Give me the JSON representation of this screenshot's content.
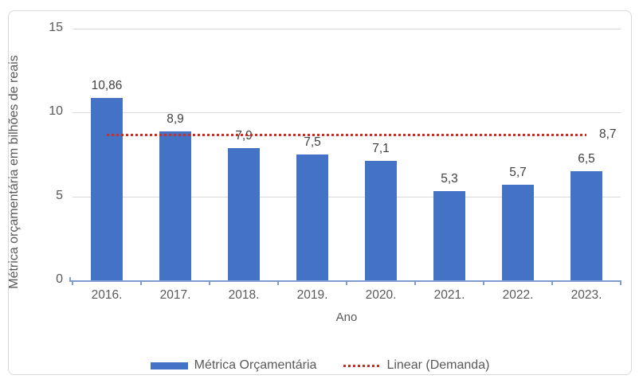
{
  "chart_data": {
    "type": "bar",
    "title": "",
    "xlabel": "Ano",
    "ylabel": "Métrica orçamentária em bilhões de reais",
    "ylim": [
      0,
      15
    ],
    "yticks": [
      0,
      5,
      10,
      15
    ],
    "ytick_labels": [
      "0",
      "5",
      "10",
      "15"
    ],
    "grid": true,
    "legend_position": "bottom",
    "categories": [
      "2016.",
      "2017.",
      "2018.",
      "2019.",
      "2020.",
      "2021.",
      "2022.",
      "2023."
    ],
    "series": [
      {
        "name": "Métrica Orçamentária",
        "type": "bar",
        "color": "#4472C4",
        "values": [
          10.86,
          8.9,
          7.9,
          7.5,
          7.1,
          5.3,
          5.7,
          6.5
        ],
        "value_labels": [
          "10,86",
          "8,9",
          "7,9",
          "7,5",
          "7,1",
          "5,3",
          "5,7",
          "6,5"
        ]
      },
      {
        "name": "Linear (Demanda)",
        "type": "trendline",
        "style": "dotted",
        "color": "#CC2E21",
        "value": 8.7,
        "value_label": "8,7"
      }
    ],
    "colors": {
      "bar": "#4472C4",
      "trendline": "#CC2E21",
      "gridline": "#D9D9D9",
      "axis_line": "#7F9CD1",
      "axis_text": "#595959",
      "value_text": "#404040"
    }
  }
}
